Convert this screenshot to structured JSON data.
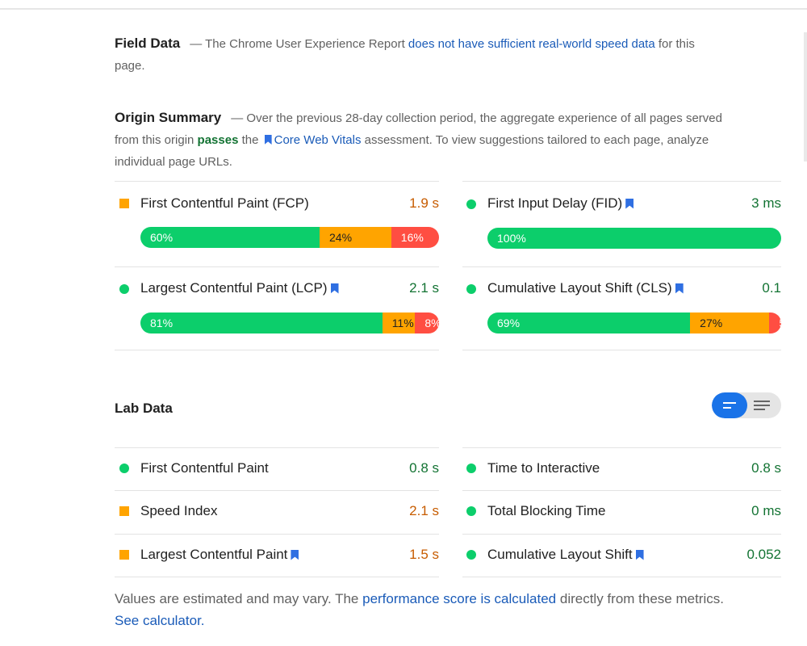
{
  "field_data": {
    "title": "Field Data",
    "text_pre": "— The Chrome User Experience Report",
    "link": "does not have sufficient real-world speed data",
    "text_post": "for this page."
  },
  "origin_summary": {
    "title": "Origin Summary",
    "text_1": "— Over the previous 28-day collection period, the aggregate experience of all pages served from this origin",
    "passes": "passes",
    "text_2": "the",
    "cwv_link": "Core Web Vitals",
    "text_3": "assessment. To view suggestions tailored to each page, analyze individual page URLs."
  },
  "field_metrics": [
    {
      "label": "First Contentful Paint (FCP)",
      "value": "1.9 s",
      "status": "average",
      "bookmark": false,
      "distribution": [
        {
          "pct": 60,
          "label": "60%"
        },
        {
          "pct": 24,
          "label": "24%"
        },
        {
          "pct": 16,
          "label": "16%"
        }
      ]
    },
    {
      "label": "First Input Delay (FID)",
      "value": "3 ms",
      "status": "good",
      "bookmark": true,
      "distribution": [
        {
          "pct": 100,
          "label": "100%"
        }
      ]
    },
    {
      "label": "Largest Contentful Paint (LCP)",
      "value": "2.1 s",
      "status": "good",
      "bookmark": true,
      "distribution": [
        {
          "pct": 81,
          "label": "81%"
        },
        {
          "pct": 11,
          "label": "11%"
        },
        {
          "pct": 8,
          "label": "8%"
        }
      ]
    },
    {
      "label": "Cumulative Layout Shift (CLS)",
      "value": "0.1",
      "status": "good",
      "bookmark": true,
      "distribution": [
        {
          "pct": 69,
          "label": "69%"
        },
        {
          "pct": 27,
          "label": "27%"
        },
        {
          "pct": 5,
          "label": "5%"
        }
      ]
    }
  ],
  "lab_data": {
    "title": "Lab Data",
    "metrics": [
      {
        "label": "First Contentful Paint",
        "value": "0.8 s",
        "status": "good",
        "bookmark": false
      },
      {
        "label": "Time to Interactive",
        "value": "0.8 s",
        "status": "good",
        "bookmark": false
      },
      {
        "label": "Speed Index",
        "value": "2.1 s",
        "status": "average",
        "bookmark": false
      },
      {
        "label": "Total Blocking Time",
        "value": "0 ms",
        "status": "good",
        "bookmark": false
      },
      {
        "label": "Largest Contentful Paint",
        "value": "1.5 s",
        "status": "average",
        "bookmark": true
      },
      {
        "label": "Cumulative Layout Shift",
        "value": "0.052",
        "status": "good",
        "bookmark": true
      }
    ]
  },
  "footer": {
    "text_1": "Values are estimated and may vary. The",
    "link_1": "performance score is calculated",
    "text_2": "directly from these metrics.",
    "link_2": "See calculator."
  },
  "colors": {
    "good": "#0cce6b",
    "average": "#ffa400",
    "poor": "#ff4e42",
    "link": "#1a5bb8",
    "toggle_active": "#1a73e8"
  },
  "icons": [
    "bookmark-icon",
    "good-circle-icon",
    "average-square-icon",
    "summary-view-icon",
    "list-view-icon"
  ]
}
